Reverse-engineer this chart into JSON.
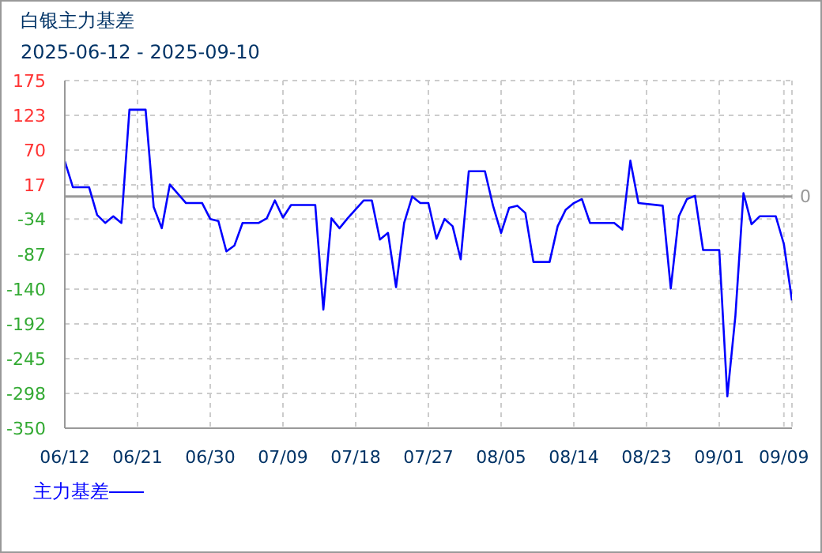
{
  "chart_data": {
    "type": "line",
    "title": "白银主力基差",
    "subtitle": "2025-06-12 - 2025-09-10",
    "x": [
      "2025-06-12",
      "2025-06-13",
      "2025-06-15",
      "2025-06-16",
      "2025-06-17",
      "2025-06-18",
      "2025-06-19",
      "2025-06-20",
      "2025-06-22",
      "2025-06-23",
      "2025-06-24",
      "2025-06-25",
      "2025-06-27",
      "2025-06-29",
      "2025-06-30",
      "2025-07-01",
      "2025-07-02",
      "2025-07-03",
      "2025-07-04",
      "2025-07-06",
      "2025-07-07",
      "2025-07-08",
      "2025-07-09",
      "2025-07-10",
      "2025-07-13",
      "2025-07-14",
      "2025-07-15",
      "2025-07-16",
      "2025-07-17",
      "2025-07-19",
      "2025-07-20",
      "2025-07-21",
      "2025-07-22",
      "2025-07-23",
      "2025-07-24",
      "2025-07-25",
      "2025-07-26",
      "2025-07-27",
      "2025-07-28",
      "2025-07-29",
      "2025-07-30",
      "2025-07-31",
      "2025-08-01",
      "2025-08-03",
      "2025-08-04",
      "2025-08-05",
      "2025-08-06",
      "2025-08-07",
      "2025-08-08",
      "2025-08-09",
      "2025-08-11",
      "2025-08-12",
      "2025-08-13",
      "2025-08-14",
      "2025-08-15",
      "2025-08-16",
      "2025-08-19",
      "2025-08-20",
      "2025-08-21",
      "2025-08-22",
      "2025-08-25",
      "2025-08-26",
      "2025-08-27",
      "2025-08-28",
      "2025-08-29",
      "2025-08-30",
      "2025-09-01",
      "2025-09-02",
      "2025-09-03",
      "2025-09-04",
      "2025-09-05",
      "2025-09-06",
      "2025-09-08",
      "2025-09-09",
      "2025-09-10"
    ],
    "series": [
      {
        "name": "主力基差",
        "color": "#0000ff",
        "values": [
          53,
          14,
          14,
          -28,
          -40,
          -30,
          -40,
          131,
          131,
          -16,
          -48,
          18,
          -10,
          -10,
          -34,
          -37,
          -83,
          -74,
          -40,
          -40,
          -33,
          -6,
          -32,
          -13,
          -13,
          -171,
          -33,
          -48,
          -33,
          -6,
          -6,
          -65,
          -55,
          -137,
          -40,
          0,
          -10,
          -10,
          -64,
          -34,
          -45,
          -95,
          38,
          38,
          -14,
          -55,
          -17,
          -14,
          -25,
          -99,
          -99,
          -45,
          -20,
          -10,
          -4,
          -40,
          -40,
          -50,
          54,
          -10,
          -14,
          -139,
          -30,
          -4,
          1,
          -81,
          -81,
          -302,
          -180,
          5,
          -42,
          -30,
          -30,
          -72,
          -157
        ]
      }
    ],
    "xlim": [
      "2025-06-12",
      "2025-09-10"
    ],
    "xticks": [
      {
        "value": "2025-06-12",
        "label": "06/12"
      },
      {
        "value": "2025-06-21",
        "label": "06/21"
      },
      {
        "value": "2025-06-30",
        "label": "06/30"
      },
      {
        "value": "2025-07-09",
        "label": "07/09"
      },
      {
        "value": "2025-07-18",
        "label": "07/18"
      },
      {
        "value": "2025-07-27",
        "label": "07/27"
      },
      {
        "value": "2025-08-05",
        "label": "08/05"
      },
      {
        "value": "2025-08-14",
        "label": "08/14"
      },
      {
        "value": "2025-08-23",
        "label": "08/23"
      },
      {
        "value": "2025-09-01",
        "label": "09/01"
      },
      {
        "value": "2025-09-09",
        "label": "09/09"
      }
    ],
    "ylim": [
      -350,
      175
    ],
    "yticks": [
      -350,
      {
        "value": -297.5,
        "label": "-298"
      },
      -245,
      {
        "value": -192.5,
        "label": "-192"
      },
      -140,
      {
        "value": -87.5,
        "label": "-87"
      },
      -34,
      {
        "value": 17.5,
        "label": "17"
      },
      70,
      {
        "value": 122.5,
        "label": "123"
      },
      175
    ],
    "ref_lines": [
      {
        "axis": "y",
        "value": 0,
        "label": "0",
        "color": "#999999"
      }
    ],
    "grid": true,
    "legend": "bottom left",
    "marker": "none",
    "line_style": "solid"
  }
}
